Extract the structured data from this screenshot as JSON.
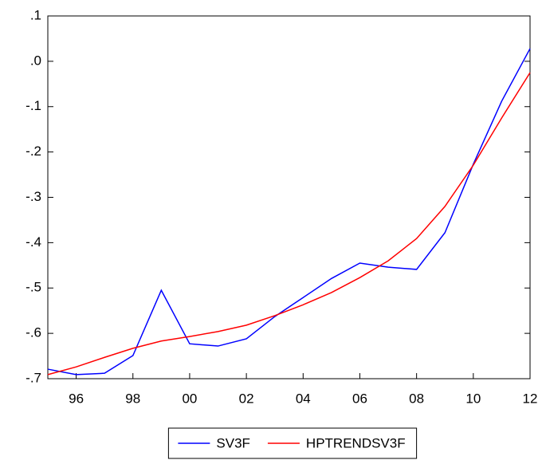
{
  "chart_data": {
    "type": "line",
    "x": [
      1995,
      1996,
      1997,
      1998,
      1999,
      2000,
      2001,
      2002,
      2003,
      2004,
      2005,
      2006,
      2007,
      2008,
      2009,
      2010,
      2011,
      2012
    ],
    "series": [
      {
        "name": "SV3F",
        "color": "#0000ff",
        "values": [
          -0.679,
          -0.691,
          -0.688,
          -0.649,
          -0.505,
          -0.623,
          -0.628,
          -0.612,
          -0.563,
          -0.521,
          -0.479,
          -0.445,
          -0.454,
          -0.459,
          -0.378,
          -0.227,
          -0.088,
          0.028
        ]
      },
      {
        "name": "HPTRENDSV3F",
        "color": "#ff0000",
        "values": [
          -0.691,
          -0.674,
          -0.653,
          -0.633,
          -0.617,
          -0.607,
          -0.596,
          -0.582,
          -0.561,
          -0.537,
          -0.51,
          -0.477,
          -0.44,
          -0.391,
          -0.32,
          -0.229,
          -0.125,
          -0.025
        ]
      }
    ],
    "xlim": [
      1995,
      2012
    ],
    "xticks": [
      {
        "value": 1996,
        "label": "96"
      },
      {
        "value": 1998,
        "label": "98"
      },
      {
        "value": 2000,
        "label": "00"
      },
      {
        "value": 2002,
        "label": "02"
      },
      {
        "value": 2004,
        "label": "04"
      },
      {
        "value": 2006,
        "label": "06"
      },
      {
        "value": 2008,
        "label": "08"
      },
      {
        "value": 2010,
        "label": "10"
      },
      {
        "value": 2012,
        "label": "12"
      }
    ],
    "ylim": [
      -0.7,
      0.1
    ],
    "yticks": [
      {
        "value": 0.1,
        "label": ".1"
      },
      {
        "value": 0.0,
        "label": ".0"
      },
      {
        "value": -0.1,
        "label": "-.1"
      },
      {
        "value": -0.2,
        "label": "-.2"
      },
      {
        "value": -0.3,
        "label": "-.3"
      },
      {
        "value": -0.4,
        "label": "-.4"
      },
      {
        "value": -0.5,
        "label": "-.5"
      },
      {
        "value": -0.6,
        "label": "-.6"
      },
      {
        "value": -0.7,
        "label": "-.7"
      }
    ],
    "grid": false,
    "legend": "bottom"
  }
}
